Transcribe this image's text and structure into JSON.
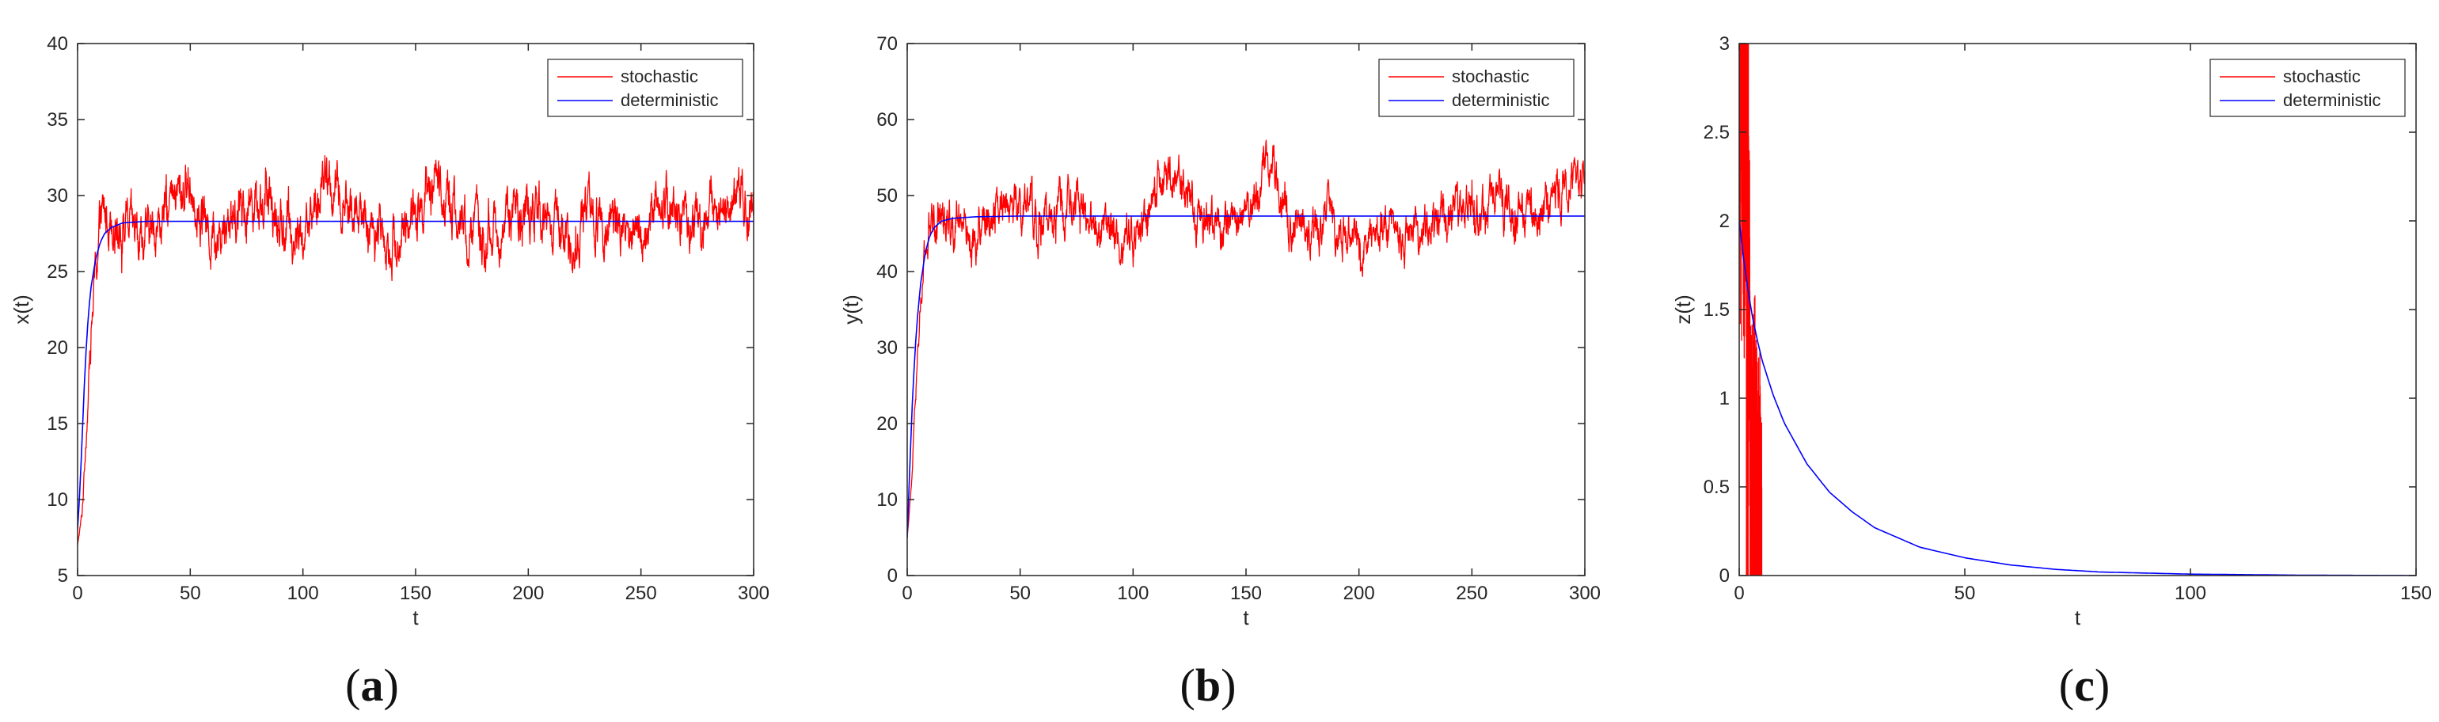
{
  "chart_data": [
    {
      "type": "line",
      "panel_label": "a",
      "xlabel": "t",
      "ylabel": "x(t)",
      "xlim": [
        0,
        300
      ],
      "ylim": [
        5,
        40
      ],
      "xticks": [
        "0",
        "50",
        "100",
        "150",
        "200",
        "250",
        "300"
      ],
      "yticks": [
        "5",
        "10",
        "15",
        "20",
        "25",
        "30",
        "35",
        "40"
      ],
      "grid": false,
      "legend": "top-right",
      "series": [
        {
          "name": "stochastic",
          "color": "#ff0000",
          "style": "noisy",
          "x": [
            0,
            2,
            4,
            6,
            8,
            10,
            15,
            20,
            30,
            40,
            50,
            60,
            70,
            80,
            90,
            100,
            110,
            120,
            130,
            140,
            150,
            160,
            170,
            180,
            190,
            200,
            210,
            220,
            230,
            240,
            250,
            260,
            270,
            280,
            290,
            300
          ],
          "y": [
            7,
            9,
            15,
            21,
            25,
            28,
            29,
            28,
            27,
            29,
            31,
            27,
            29,
            30,
            28,
            27,
            31,
            29,
            28,
            27,
            29,
            31,
            28,
            27,
            28,
            29,
            28,
            27,
            29,
            28,
            27,
            30,
            28,
            29,
            30,
            29
          ],
          "noise_amplitude": 2.6,
          "min": 7,
          "max": 36
        },
        {
          "name": "deterministic",
          "color": "#0000ff",
          "style": "smooth",
          "x": [
            0,
            1,
            2,
            3,
            4,
            5,
            6,
            8,
            10,
            12,
            15,
            20,
            30,
            50,
            100,
            200,
            300
          ],
          "y": [
            8,
            10.5,
            14,
            17.5,
            20.5,
            22.5,
            24,
            25.8,
            26.9,
            27.5,
            27.9,
            28.2,
            28.3,
            28.3,
            28.3,
            28.3,
            28.3
          ]
        }
      ]
    },
    {
      "type": "line",
      "panel_label": "b",
      "xlabel": "t",
      "ylabel": "y(t)",
      "xlim": [
        0,
        300
      ],
      "ylim": [
        0,
        70
      ],
      "xticks": [
        "0",
        "50",
        "100",
        "150",
        "200",
        "250",
        "300"
      ],
      "yticks": [
        "0",
        "10",
        "20",
        "30",
        "40",
        "50",
        "60",
        "70"
      ],
      "grid": false,
      "legend": "top-right",
      "series": [
        {
          "name": "stochastic",
          "color": "#ff0000",
          "style": "noisy",
          "x": [
            0,
            2,
            4,
            6,
            8,
            10,
            15,
            20,
            30,
            40,
            50,
            60,
            70,
            80,
            90,
            100,
            110,
            120,
            130,
            140,
            150,
            160,
            170,
            180,
            190,
            200,
            210,
            220,
            230,
            240,
            250,
            260,
            270,
            280,
            290,
            300
          ],
          "y": [
            5,
            12,
            25,
            36,
            42,
            45,
            48,
            47,
            44,
            50,
            48,
            46,
            49,
            47,
            45,
            44,
            50,
            52,
            47,
            46,
            48,
            55,
            47,
            45,
            46,
            44,
            47,
            45,
            46,
            48,
            47,
            52,
            46,
            48,
            50,
            51
          ],
          "noise_amplitude": 4.5,
          "min": 5,
          "max": 62
        },
        {
          "name": "deterministic",
          "color": "#0000ff",
          "style": "smooth",
          "x": [
            0,
            1,
            2,
            3,
            4,
            5,
            6,
            8,
            10,
            12,
            15,
            20,
            30,
            50,
            100,
            200,
            300
          ],
          "y": [
            5,
            13,
            21,
            27,
            32,
            35.5,
            38.5,
            42.5,
            44.7,
            45.8,
            46.6,
            47,
            47.2,
            47.3,
            47.3,
            47.3,
            47.3
          ]
        }
      ]
    },
    {
      "type": "line",
      "panel_label": "c",
      "xlabel": "t",
      "ylabel": "z(t)",
      "xlim": [
        0,
        150
      ],
      "ylim": [
        0,
        3
      ],
      "xticks": [
        "0",
        "50",
        "100",
        "150"
      ],
      "yticks": [
        "0",
        "0.5",
        "1",
        "1.5",
        "2",
        "2.5",
        "3"
      ],
      "grid": false,
      "legend": "top-right",
      "series": [
        {
          "name": "stochastic",
          "color": "#ff0000",
          "style": "burst",
          "x": [
            0,
            0.5,
            1,
            1.5,
            2,
            2.5,
            3,
            3.5,
            4,
            4.5,
            5
          ],
          "y": [
            3,
            3,
            3,
            1.2,
            2.2,
            0.4,
            0.2,
            0.5,
            0.1,
            0.3,
            0
          ],
          "clipped_at_top": true,
          "ends_at": 5
        },
        {
          "name": "deterministic",
          "color": "#0000ff",
          "style": "smooth",
          "x": [
            0,
            1,
            2,
            3,
            4,
            5,
            7.5,
            10,
            15,
            20,
            25,
            30,
            40,
            50,
            60,
            70,
            80,
            100,
            125,
            150
          ],
          "y": [
            2,
            1.78,
            1.6,
            1.45,
            1.33,
            1.22,
            1.02,
            0.86,
            0.63,
            0.47,
            0.36,
            0.27,
            0.16,
            0.1,
            0.06,
            0.035,
            0.02,
            0.008,
            0.002,
            0
          ]
        }
      ]
    }
  ]
}
